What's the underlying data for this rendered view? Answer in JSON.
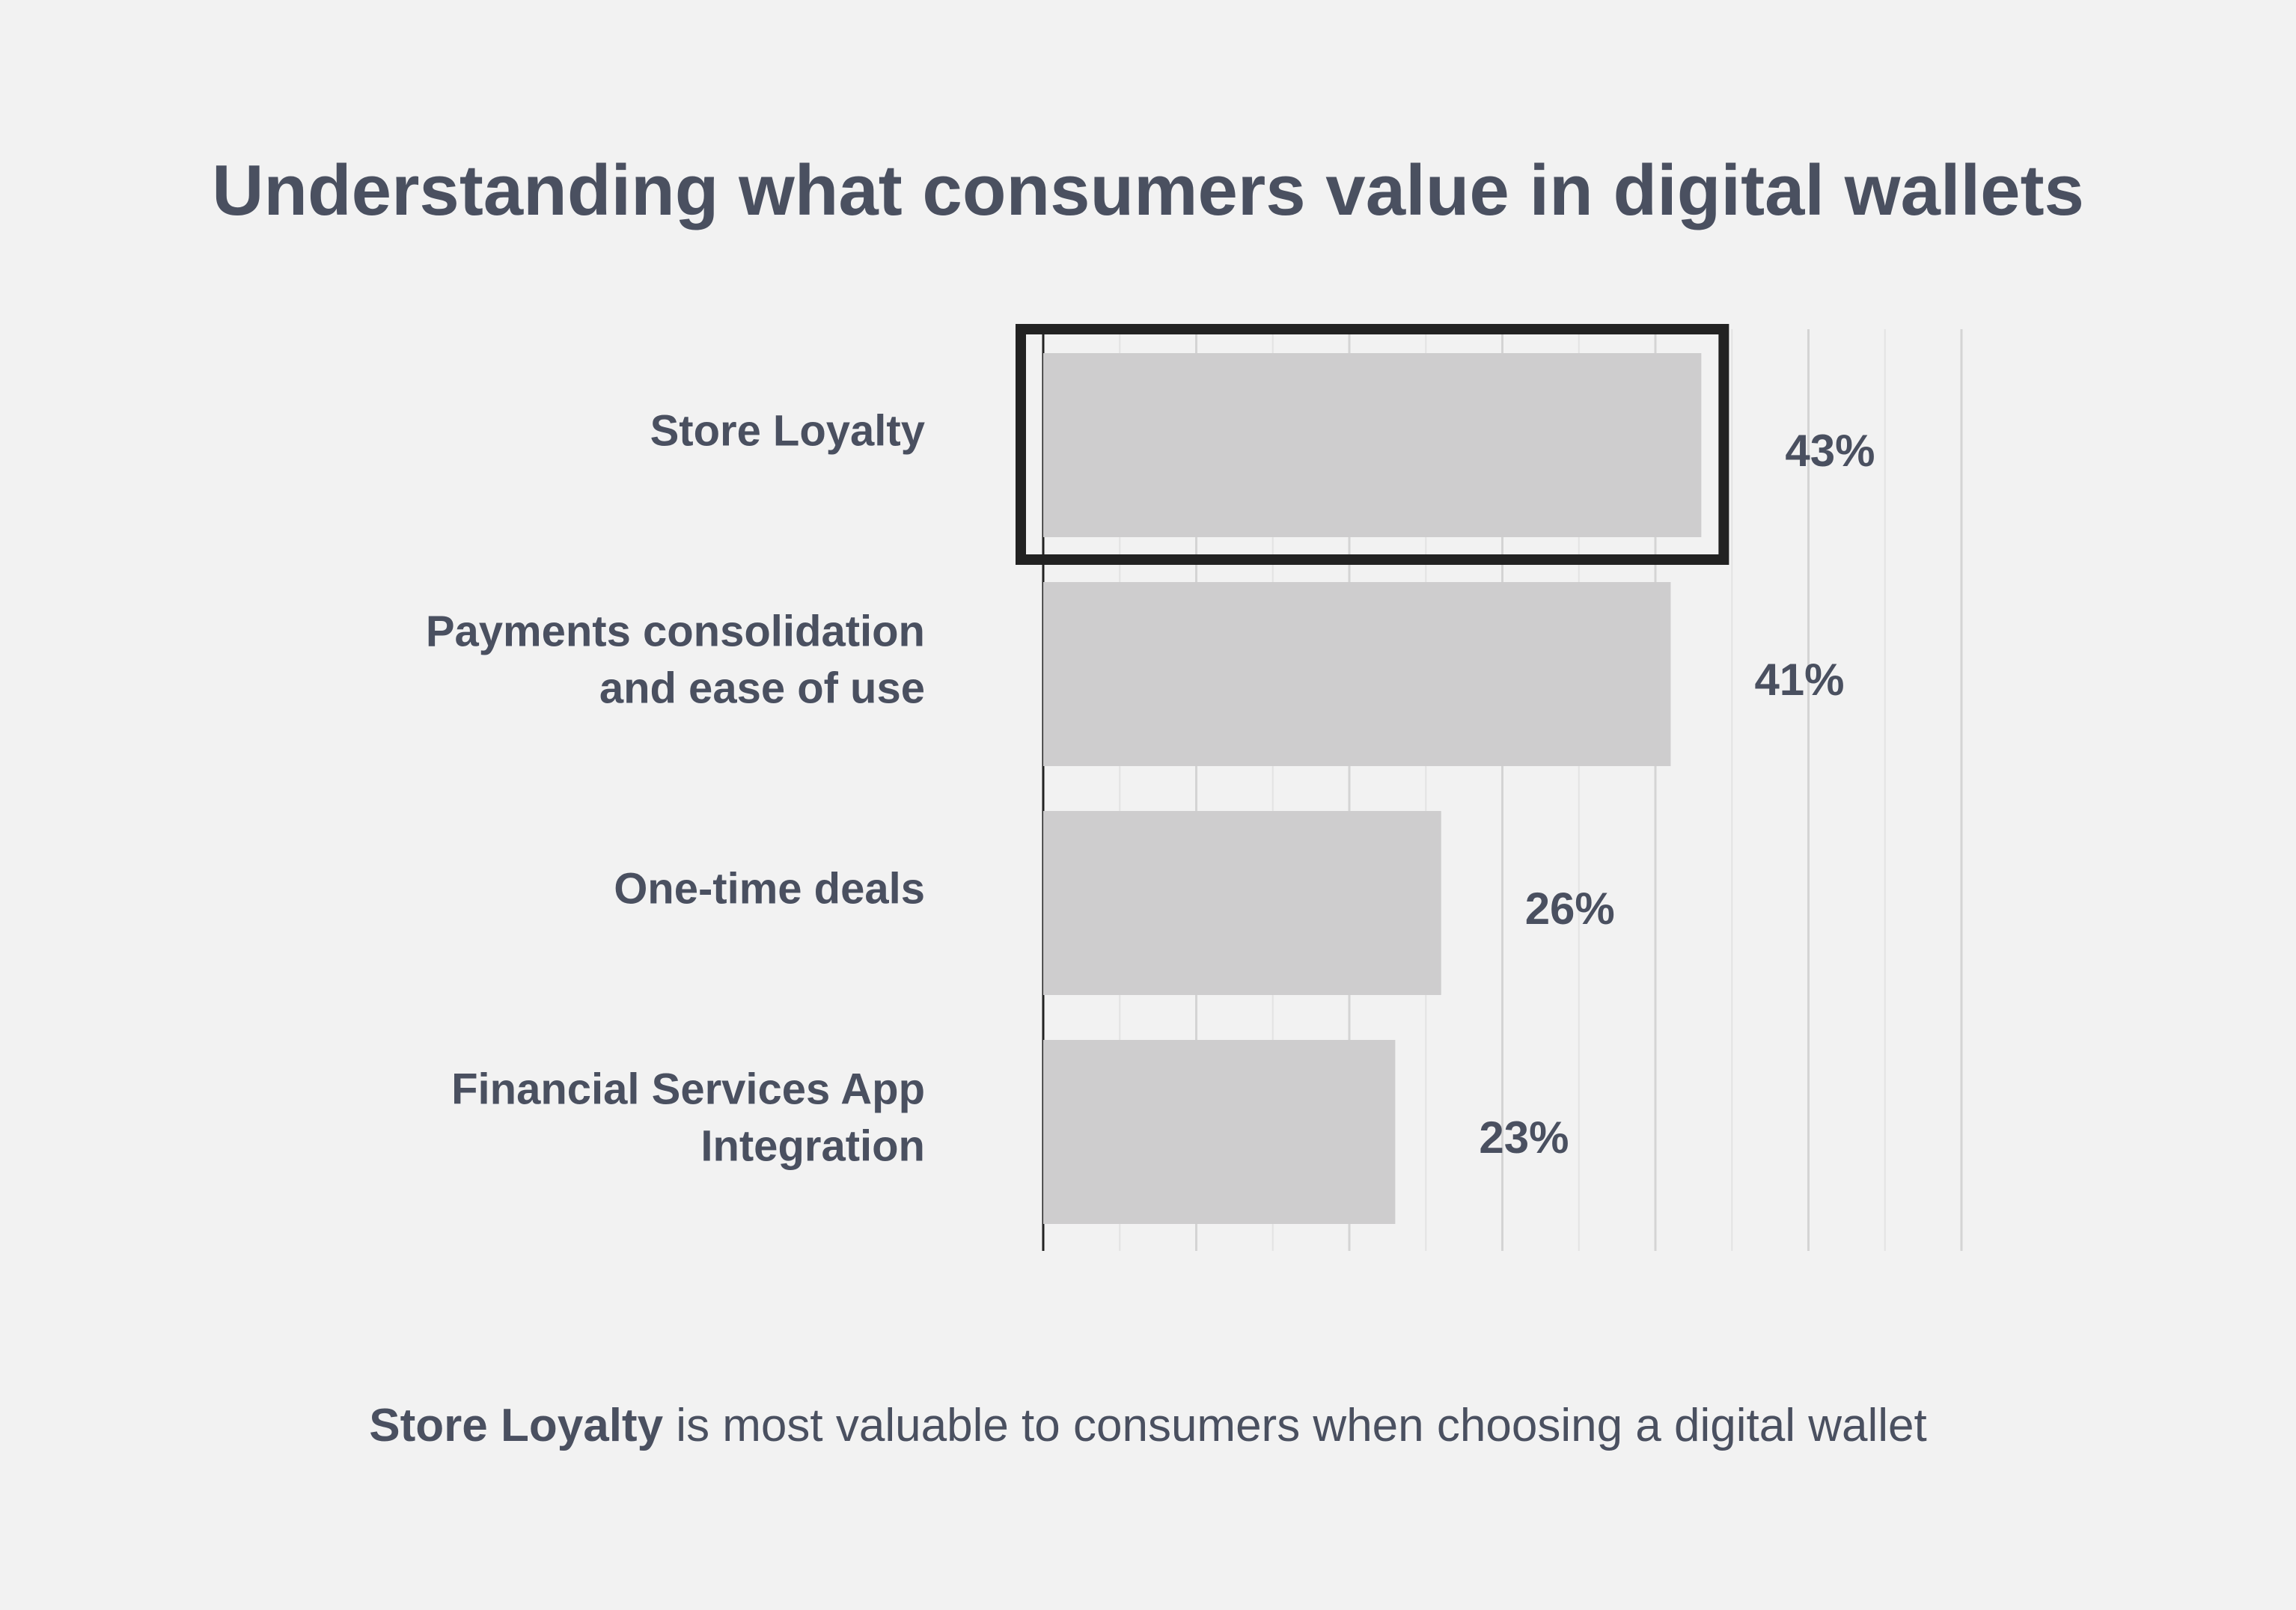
{
  "colors": {
    "background": "#f2f2f2",
    "bar": "#cecdce",
    "text": "#4a5060",
    "grid": "#e3e3e3",
    "grid_major": "#d4d4d4",
    "highlight": "#222222",
    "axis": "#222222"
  },
  "chart_data": {
    "type": "bar",
    "orientation": "horizontal",
    "title": "Understanding what consumers value in digital wallets",
    "categories": [
      [
        "Store Loyalty"
      ],
      [
        "Payments consolidation",
        "and ease of use"
      ],
      [
        "One-time deals"
      ],
      [
        "Financial Services App",
        "Integration"
      ]
    ],
    "values": [
      43,
      41,
      26,
      23
    ],
    "value_labels": [
      "43%",
      "41%",
      "26%",
      "23%"
    ],
    "xlim": [
      0,
      60
    ],
    "grid": true,
    "highlighted_category_index": 0
  },
  "footnote": {
    "bold": "Store Loyalty",
    "rest": " is most valuable to consumers when choosing a digital wallet"
  }
}
